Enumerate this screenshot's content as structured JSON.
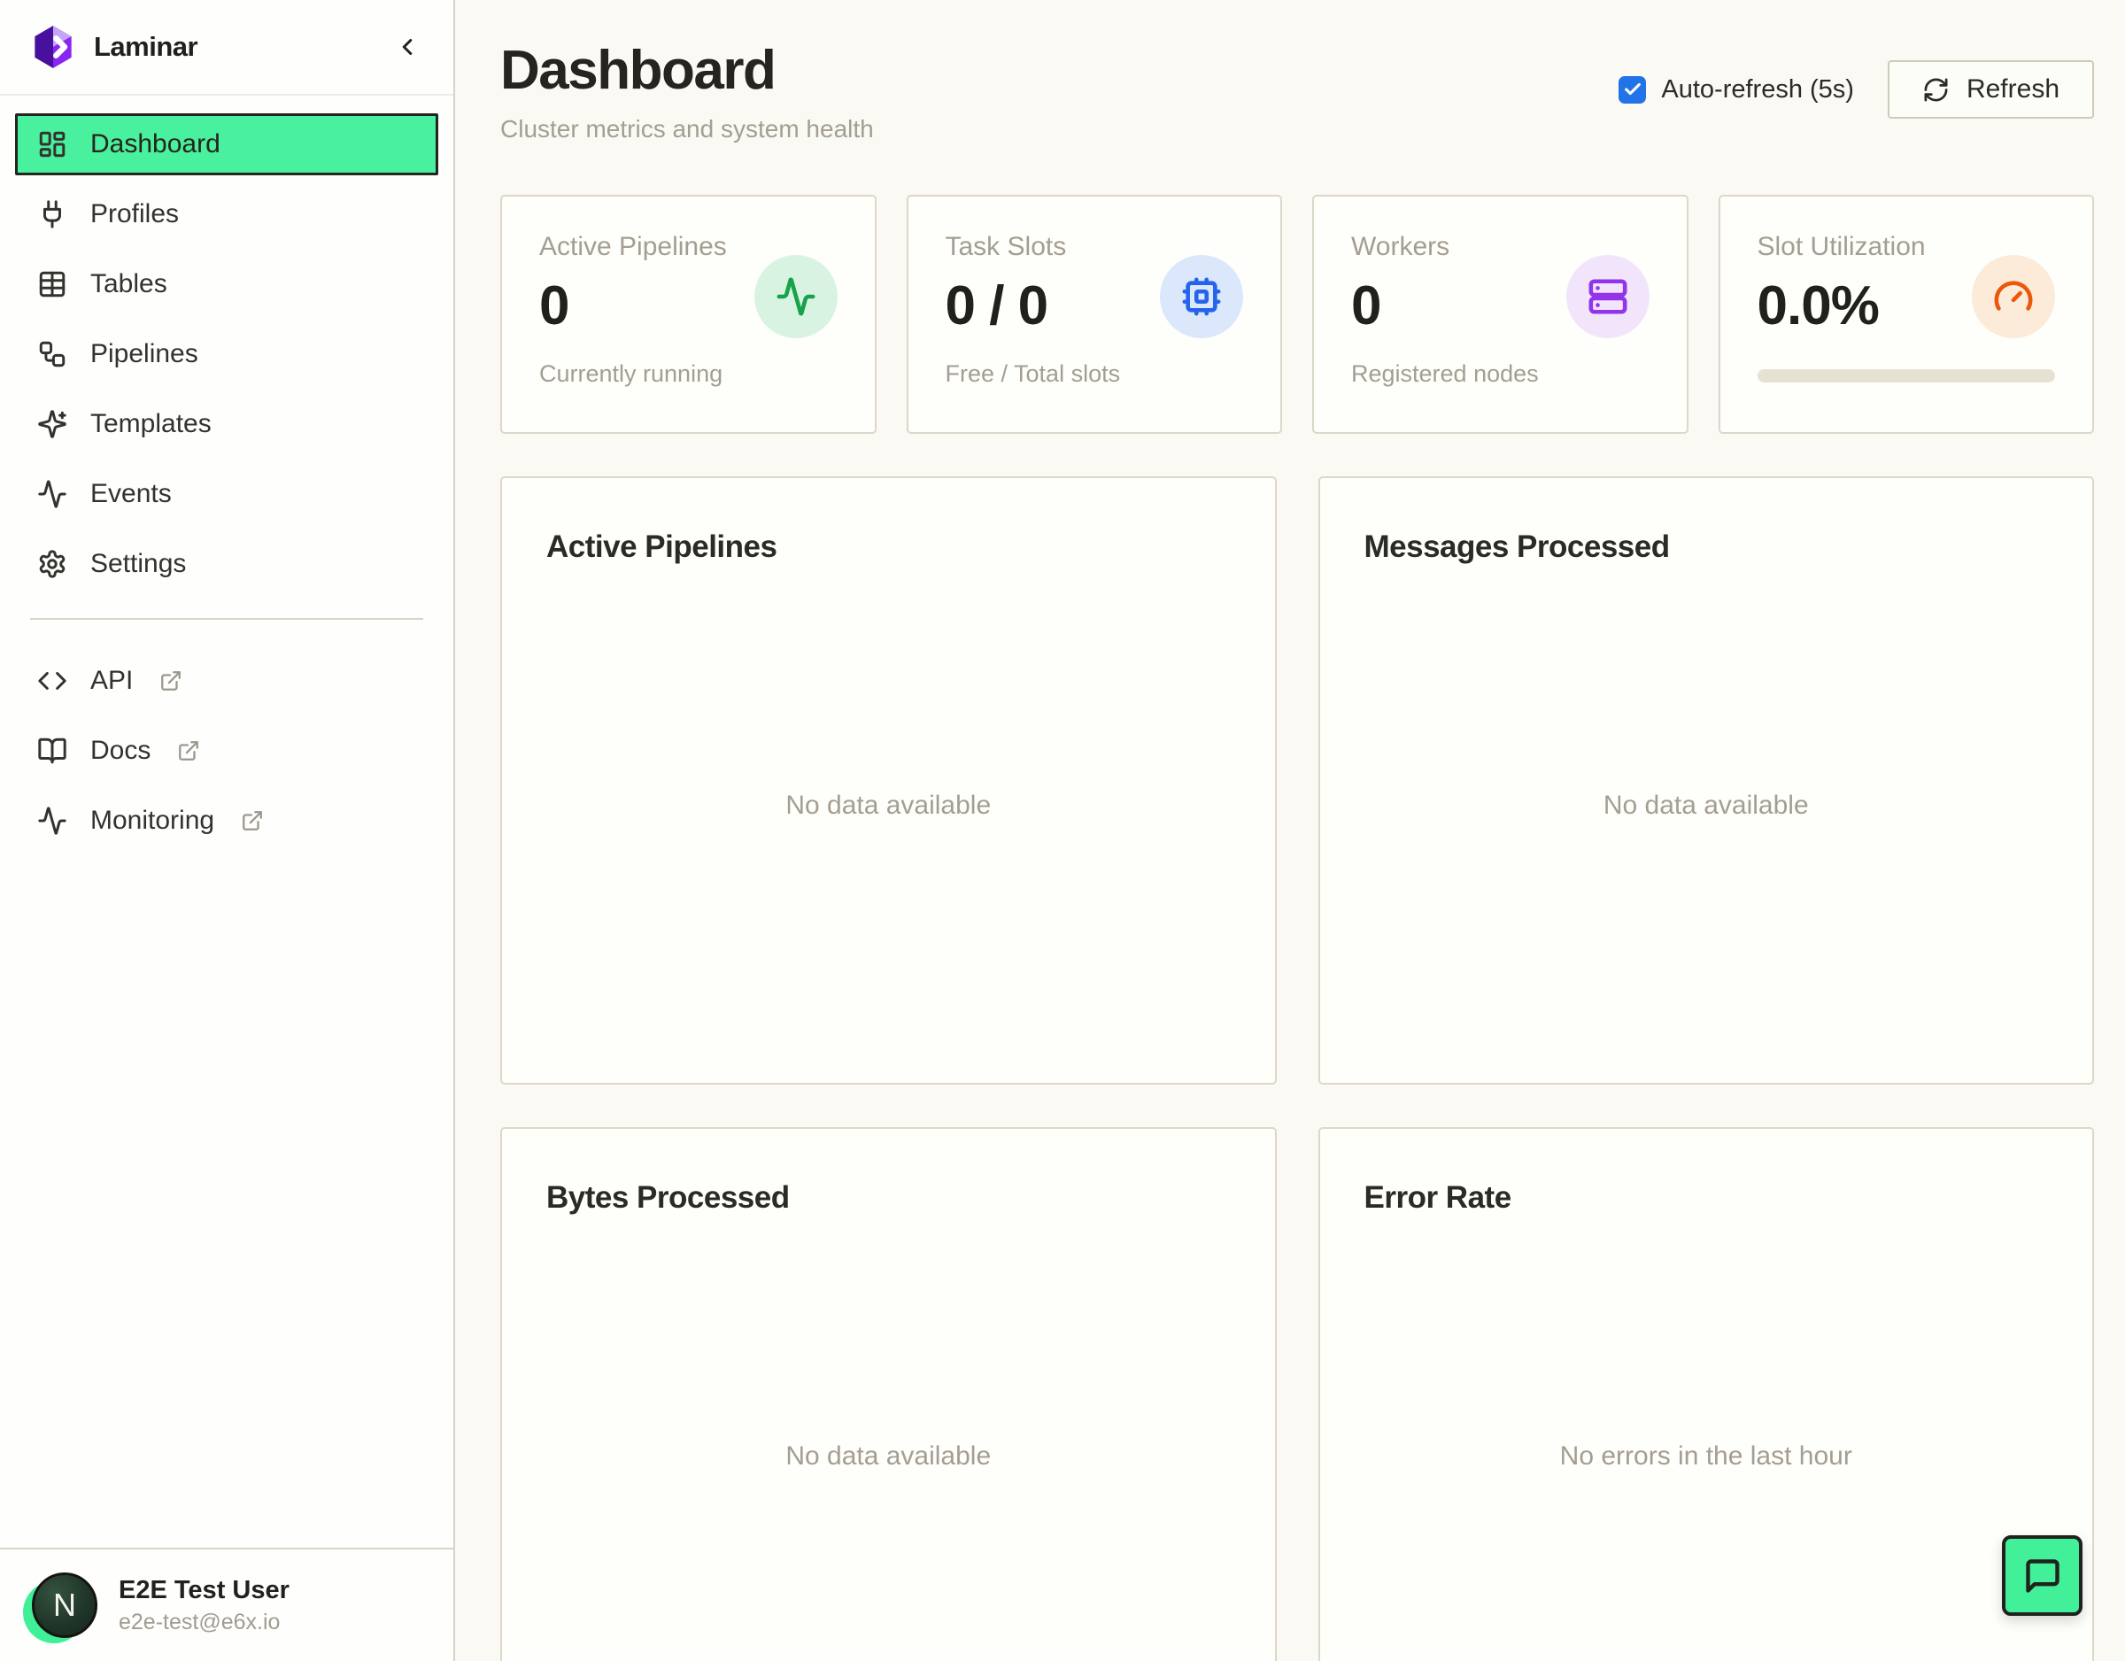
{
  "app": {
    "name": "Laminar"
  },
  "sidebar": {
    "nav": [
      {
        "label": "Dashboard",
        "icon": "dashboard-grid-icon",
        "active": true
      },
      {
        "label": "Profiles",
        "icon": "plug-icon",
        "active": false
      },
      {
        "label": "Tables",
        "icon": "table-icon",
        "active": false
      },
      {
        "label": "Pipelines",
        "icon": "workflow-icon",
        "active": false
      },
      {
        "label": "Templates",
        "icon": "sparkles-icon",
        "active": false
      },
      {
        "label": "Events",
        "icon": "activity-icon",
        "active": false
      },
      {
        "label": "Settings",
        "icon": "gear-icon",
        "active": false
      }
    ],
    "external_links": [
      {
        "label": "API",
        "icon": "code-icon"
      },
      {
        "label": "Docs",
        "icon": "book-open-icon"
      },
      {
        "label": "Monitoring",
        "icon": "activity-icon"
      }
    ],
    "user": {
      "initial": "N",
      "name": "E2E Test User",
      "email": "e2e-test@e6x.io"
    }
  },
  "header": {
    "title": "Dashboard",
    "subtitle": "Cluster metrics and system health",
    "auto_refresh_label": "Auto-refresh (5s)",
    "auto_refresh_checked": true,
    "refresh_label": "Refresh"
  },
  "stats": [
    {
      "label": "Active Pipelines",
      "value": "0",
      "sub": "Currently running",
      "icon": "activity-icon",
      "accent": "#16A34A",
      "accent_bg": "#D9F3E2"
    },
    {
      "label": "Task Slots",
      "value": "0 / 0",
      "sub": "Free / Total slots",
      "icon": "cpu-icon",
      "accent": "#2563EB",
      "accent_bg": "#DBE7FB"
    },
    {
      "label": "Workers",
      "value": "0",
      "sub": "Registered nodes",
      "icon": "server-icon",
      "accent": "#9333EA",
      "accent_bg": "#F2E5FB"
    },
    {
      "label": "Slot Utilization",
      "value": "0.0%",
      "sub": "",
      "icon": "gauge-icon",
      "accent": "#EA580C",
      "accent_bg": "#FCEBD8",
      "progress_pct": 0
    }
  ],
  "charts": [
    {
      "title": "Active Pipelines",
      "empty_text": "No data available"
    },
    {
      "title": "Messages Processed",
      "empty_text": "No data available"
    },
    {
      "title": "Bytes Processed",
      "empty_text": "No data available"
    },
    {
      "title": "Error Rate",
      "empty_text": "No errors in the last hour"
    }
  ],
  "fab": {
    "icon": "chat-bubble-icon"
  },
  "colors": {
    "accent_green": "#49F09D",
    "main_bg": "#FAF9F3",
    "card_border": "#DCD7C9",
    "checkbox_blue": "#2273E8"
  }
}
